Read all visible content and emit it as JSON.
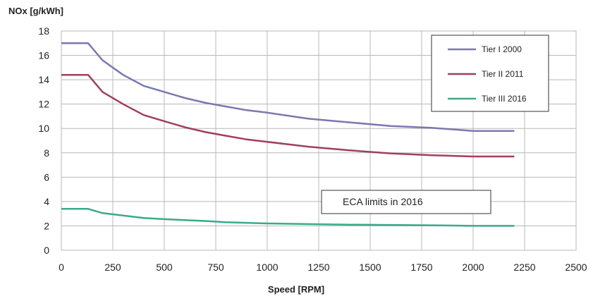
{
  "chart_data": {
    "type": "line",
    "title": "",
    "ylabel": "NOx [g/kWh]",
    "xlabel": "Speed [RPM]",
    "xlim": [
      0,
      2500
    ],
    "ylim": [
      0,
      18
    ],
    "x_ticks": [
      0,
      250,
      500,
      750,
      1000,
      1250,
      1500,
      1750,
      2000,
      2250,
      2500
    ],
    "y_ticks": [
      0,
      2,
      4,
      6,
      8,
      10,
      12,
      14,
      16,
      18
    ],
    "grid": true,
    "legend_position": "top-right",
    "series": [
      {
        "name": "Tier I 2000",
        "color": "#7a78b0",
        "points": [
          [
            0,
            17.0
          ],
          [
            130,
            17.0
          ],
          [
            200,
            15.6
          ],
          [
            300,
            14.4
          ],
          [
            400,
            13.5
          ],
          [
            500,
            13.0
          ],
          [
            600,
            12.5
          ],
          [
            700,
            12.1
          ],
          [
            800,
            11.8
          ],
          [
            900,
            11.5
          ],
          [
            1000,
            11.3
          ],
          [
            1200,
            10.8
          ],
          [
            1400,
            10.5
          ],
          [
            1600,
            10.2
          ],
          [
            1800,
            10.05
          ],
          [
            2000,
            9.8
          ],
          [
            2200,
            9.8
          ]
        ]
      },
      {
        "name": "Tier II 2011",
        "color": "#a0405a",
        "points": [
          [
            0,
            14.4
          ],
          [
            130,
            14.4
          ],
          [
            200,
            13.0
          ],
          [
            300,
            12.0
          ],
          [
            400,
            11.1
          ],
          [
            500,
            10.6
          ],
          [
            600,
            10.1
          ],
          [
            700,
            9.7
          ],
          [
            800,
            9.4
          ],
          [
            900,
            9.1
          ],
          [
            1000,
            8.9
          ],
          [
            1200,
            8.5
          ],
          [
            1400,
            8.2
          ],
          [
            1600,
            7.95
          ],
          [
            1800,
            7.8
          ],
          [
            2000,
            7.7
          ],
          [
            2200,
            7.7
          ]
        ]
      },
      {
        "name": "Tier III 2016",
        "color": "#3aaa8a",
        "points": [
          [
            0,
            3.4
          ],
          [
            130,
            3.4
          ],
          [
            200,
            3.05
          ],
          [
            300,
            2.85
          ],
          [
            400,
            2.65
          ],
          [
            500,
            2.55
          ],
          [
            600,
            2.48
          ],
          [
            700,
            2.4
          ],
          [
            800,
            2.3
          ],
          [
            900,
            2.25
          ],
          [
            1000,
            2.2
          ],
          [
            1200,
            2.15
          ],
          [
            1400,
            2.1
          ],
          [
            1600,
            2.08
          ],
          [
            1800,
            2.05
          ],
          [
            2000,
            2.0
          ],
          [
            2200,
            2.0
          ]
        ]
      }
    ],
    "annotations": [
      {
        "text": "ECA limits in 2016"
      }
    ]
  }
}
